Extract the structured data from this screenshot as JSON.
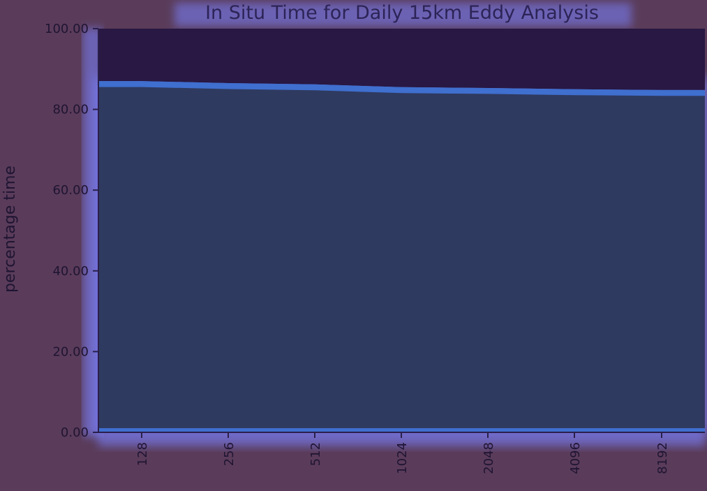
{
  "chart_data": {
    "type": "area",
    "title": "In Situ Time for Daily 15km Eddy Analysis",
    "xlabel": "",
    "ylabel": "percentage time",
    "x_scale": "log2",
    "x": [
      128,
      256,
      512,
      1024,
      2048,
      4096,
      8192
    ],
    "x_tick_labels": [
      "128",
      "256",
      "512",
      "1024",
      "2048",
      "4096",
      "8192"
    ],
    "y_tick_labels": [
      "0.00",
      "20.00",
      "40.00",
      "60.00",
      "80.00",
      "100.00"
    ],
    "ylim": [
      0,
      100
    ],
    "grid": false,
    "series": [
      {
        "values": [
          87,
          86.5,
          86.2,
          85.5,
          85.3,
          85.0,
          84.8
        ],
        "color": "#2f3a60"
      },
      {
        "values": [
          100,
          100,
          100,
          100,
          100,
          100,
          100
        ],
        "color": "#281843"
      }
    ],
    "colors": {
      "background": "#5a3c5a",
      "glow": "#7a82ff",
      "axis": "#2a1f4a"
    }
  }
}
